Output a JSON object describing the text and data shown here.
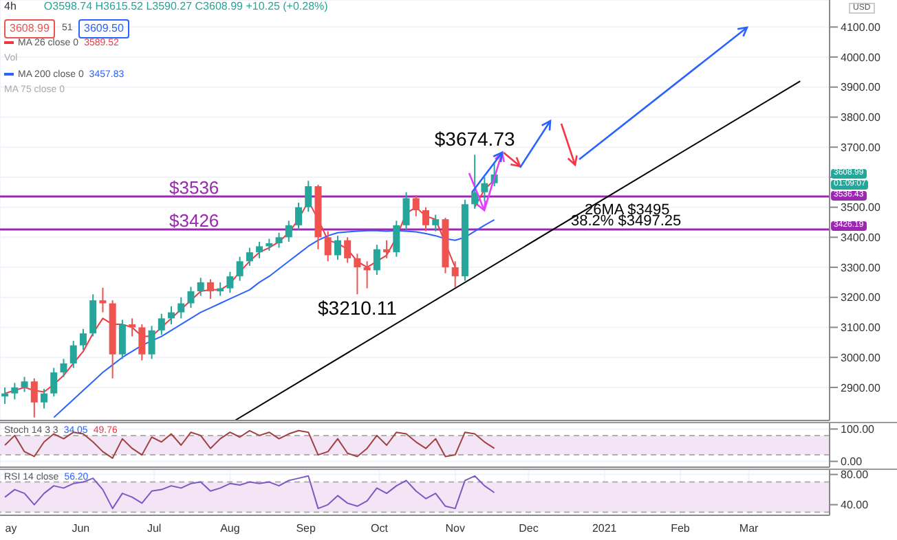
{
  "chart_data": [
    {
      "type": "candlestick",
      "title": "4h",
      "subtitle": "O3598.74 H3615.52 L3590.27 C3608.99 +10.25 (+0.28%)",
      "ylabel": "USD",
      "x": [
        "2020-05-01",
        "2020-05-05",
        "2020-05-09",
        "2020-05-13",
        "2020-05-17",
        "2020-05-21",
        "2020-05-25",
        "2020-05-29",
        "2020-06-02",
        "2020-06-06",
        "2020-06-10",
        "2020-06-14",
        "2020-06-18",
        "2020-06-22",
        "2020-06-26",
        "2020-06-30",
        "2020-07-04",
        "2020-07-08",
        "2020-07-12",
        "2020-07-16",
        "2020-07-20",
        "2020-07-24",
        "2020-07-28",
        "2020-08-01",
        "2020-08-05",
        "2020-08-09",
        "2020-08-13",
        "2020-08-17",
        "2020-08-21",
        "2020-08-25",
        "2020-08-29",
        "2020-09-02",
        "2020-09-06",
        "2020-09-10",
        "2020-09-14",
        "2020-09-18",
        "2020-09-22",
        "2020-09-26",
        "2020-09-30",
        "2020-10-04",
        "2020-10-08",
        "2020-10-12",
        "2020-10-16",
        "2020-10-20",
        "2020-10-24",
        "2020-10-28",
        "2020-11-01",
        "2020-11-05",
        "2020-11-09",
        "2020-11-13",
        "2020-11-17"
      ],
      "ohlc": [
        [
          2870,
          2900,
          2845,
          2880
        ],
        [
          2880,
          2915,
          2860,
          2900
        ],
        [
          2900,
          2935,
          2885,
          2920
        ],
        [
          2920,
          2930,
          2800,
          2850
        ],
        [
          2850,
          2895,
          2830,
          2880
        ],
        [
          2880,
          2965,
          2870,
          2950
        ],
        [
          2950,
          2995,
          2935,
          2980
        ],
        [
          2980,
          3055,
          2965,
          3040
        ],
        [
          3040,
          3095,
          3025,
          3080
        ],
        [
          3080,
          3210,
          3070,
          3190
        ],
        [
          3190,
          3232,
          3150,
          3180
        ],
        [
          3180,
          3190,
          2930,
          3010
        ],
        [
          3010,
          3125,
          2995,
          3110
        ],
        [
          3110,
          3130,
          3070,
          3100
        ],
        [
          3100,
          3110,
          2990,
          3010
        ],
        [
          3010,
          3105,
          2995,
          3090
        ],
        [
          3090,
          3145,
          3075,
          3130
        ],
        [
          3130,
          3170,
          3110,
          3150
        ],
        [
          3150,
          3200,
          3130,
          3180
        ],
        [
          3180,
          3235,
          3165,
          3220
        ],
        [
          3220,
          3265,
          3205,
          3250
        ],
        [
          3250,
          3260,
          3195,
          3220
        ],
        [
          3220,
          3250,
          3205,
          3230
        ],
        [
          3230,
          3285,
          3215,
          3270
        ],
        [
          3270,
          3335,
          3255,
          3320
        ],
        [
          3320,
          3365,
          3305,
          3350
        ],
        [
          3350,
          3385,
          3330,
          3370
        ],
        [
          3370,
          3395,
          3355,
          3380
        ],
        [
          3380,
          3415,
          3365,
          3400
        ],
        [
          3400,
          3455,
          3385,
          3440
        ],
        [
          3440,
          3515,
          3425,
          3500
        ],
        [
          3500,
          3588,
          3485,
          3570
        ],
        [
          3570,
          3575,
          3360,
          3400
        ],
        [
          3400,
          3420,
          3320,
          3340
        ],
        [
          3340,
          3405,
          3325,
          3390
        ],
        [
          3390,
          3400,
          3315,
          3330
        ],
        [
          3330,
          3345,
          3210.11,
          3300
        ],
        [
          3300,
          3320,
          3230,
          3290
        ],
        [
          3290,
          3375,
          3275,
          3360
        ],
        [
          3360,
          3390,
          3330,
          3350
        ],
        [
          3350,
          3455,
          3335,
          3440
        ],
        [
          3440,
          3550,
          3425,
          3530
        ],
        [
          3530,
          3540,
          3470,
          3490
        ],
        [
          3490,
          3500,
          3420,
          3440
        ],
        [
          3440,
          3475,
          3420,
          3460
        ],
        [
          3460,
          3465,
          3280,
          3300
        ],
        [
          3300,
          3320,
          3233,
          3270
        ],
        [
          3270,
          3525,
          3255,
          3510
        ],
        [
          3510,
          3674.73,
          3495,
          3550
        ],
        [
          3550,
          3600,
          3520,
          3580
        ],
        [
          3580,
          3645,
          3570,
          3608.99
        ]
      ],
      "colors": [
        "#26a69a",
        "#26a69a",
        "#26a69a",
        "#ef5350",
        "#26a69a",
        "#26a69a",
        "#26a69a",
        "#26a69a",
        "#26a69a",
        "#26a69a",
        "#ef5350",
        "#ef5350",
        "#26a69a",
        "#ef5350",
        "#ef5350",
        "#26a69a",
        "#26a69a",
        "#26a69a",
        "#26a69a",
        "#26a69a",
        "#26a69a",
        "#ef5350",
        "#26a69a",
        "#26a69a",
        "#26a69a",
        "#26a69a",
        "#26a69a",
        "#26a69a",
        "#26a69a",
        "#26a69a",
        "#26a69a",
        "#26a69a",
        "#ef5350",
        "#ef5350",
        "#26a69a",
        "#ef5350",
        "#ef5350",
        "#ef5350",
        "#26a69a",
        "#ef5350",
        "#26a69a",
        "#26a69a",
        "#ef5350",
        "#ef5350",
        "#26a69a",
        "#ef5350",
        "#ef5350",
        "#26a69a",
        "#26a69a",
        "#26a69a",
        "#26a69a"
      ],
      "series": [
        {
          "type": "line",
          "name": "MA 26 close 0",
          "color": "#f23645",
          "values": [
            2880,
            2890,
            2900,
            2890,
            2885,
            2910,
            2940,
            2980,
            3020,
            3080,
            3130,
            3110,
            3110,
            3100,
            3070,
            3070,
            3100,
            3130,
            3160,
            3190,
            3220,
            3225,
            3225,
            3245,
            3285,
            3320,
            3350,
            3365,
            3385,
            3415,
            3460,
            3520,
            3460,
            3390,
            3380,
            3360,
            3320,
            3300,
            3320,
            3340,
            3400,
            3480,
            3500,
            3470,
            3460,
            3380,
            3300,
            null,
            3500,
            3560,
            3590
          ]
        },
        {
          "type": "line",
          "name": "MA 200 close 0",
          "color": "#2962ff",
          "values": [
            null,
            null,
            null,
            null,
            null,
            2800,
            2830,
            2860,
            2890,
            2920,
            2950,
            2975,
            3000,
            3020,
            3040,
            3055,
            3070,
            3090,
            3110,
            3130,
            3150,
            3165,
            3180,
            3195,
            3210,
            3225,
            3250,
            3270,
            3295,
            3320,
            3345,
            3370,
            3390,
            3405,
            3415,
            3418,
            3420,
            3422,
            3422,
            3420,
            3422,
            3420,
            3418,
            3412,
            3405,
            3395,
            3390,
            3400,
            3420,
            3440,
            3458
          ]
        },
        {
          "type": "line",
          "color": "#000000",
          "x": [
            "2020-08-03",
            "2021-03-22"
          ],
          "values": [
            2790,
            3920
          ]
        }
      ],
      "ref_lines": [
        {
          "axis": "y",
          "value": 3536,
          "label": "$3536",
          "color": "#9c27b0"
        },
        {
          "axis": "y",
          "value": 3426,
          "label": "$3426",
          "color": "#9c27b0"
        }
      ],
      "annotations": [
        {
          "text": "$3674.73",
          "x": "2020-11-09",
          "y": 3674.73
        },
        {
          "text": "$3210.11",
          "x": "2020-09-22",
          "y": 3210.11
        },
        "3608.99",
        "3536.43",
        "3426.19",
        "01:09:07",
        "3608.99",
        "51",
        "3609.50",
        "Vol",
        "MA 75 close 0",
        "26MA $3495",
        "38.2% $3497.25",
        "3589.52",
        "3457.83"
      ],
      "xlim": [
        "2020-04-29",
        "2021-04-03"
      ],
      "xticks": [
        {
          "value": "2020-05-01",
          "label": null
        },
        {
          "value": "2020-06-01",
          "label": null
        },
        {
          "value": "2020-07-01",
          "label": null
        },
        {
          "value": "2020-08-01",
          "label": null
        },
        {
          "value": "2020-09-01",
          "label": null
        },
        {
          "value": "2020-10-01",
          "label": null
        },
        {
          "value": "2020-11-01",
          "label": null
        },
        {
          "value": "2020-12-01",
          "label": null
        },
        {
          "value": "2021-01-01",
          "label": null
        },
        {
          "value": "2021-02-01",
          "label": null
        },
        {
          "value": "2021-03-01",
          "label": null
        }
      ],
      "ylim": [
        2790,
        4190
      ],
      "yticks": [
        {
          "value": 2900,
          "label": "2900.00"
        },
        {
          "value": 3000,
          "label": "3000.00"
        },
        {
          "value": 3100,
          "label": "3100.00"
        },
        {
          "value": 3200,
          "label": "3200.00"
        },
        {
          "value": 3300,
          "label": "3300.00"
        },
        {
          "value": 3400,
          "label": "3400.00"
        },
        {
          "value": 3500,
          "label": "3500.00"
        },
        {
          "value": 3600,
          "label": null
        },
        {
          "value": 3700,
          "label": "3700.00"
        },
        {
          "value": 3800,
          "label": "3800.00"
        },
        {
          "value": 3900,
          "label": "3900.00"
        },
        {
          "value": 4000,
          "label": "4000.00"
        },
        {
          "value": 4100,
          "label": "4100.00"
        }
      ],
      "grid": true,
      "legend": "top left",
      "tick_labels": "y"
    },
    {
      "type": "line",
      "title": "Stoch 14 3 3",
      "annotations": [
        "34.05",
        "49.76"
      ],
      "x": [
        "2020-05-01",
        "2020-05-05",
        "2020-05-09",
        "2020-05-13",
        "2020-05-17",
        "2020-05-21",
        "2020-05-25",
        "2020-05-29",
        "2020-06-02",
        "2020-06-06",
        "2020-06-10",
        "2020-06-14",
        "2020-06-18",
        "2020-06-22",
        "2020-06-26",
        "2020-06-30",
        "2020-07-04",
        "2020-07-08",
        "2020-07-12",
        "2020-07-16",
        "2020-07-20",
        "2020-07-24",
        "2020-07-28",
        "2020-08-01",
        "2020-08-05",
        "2020-08-09",
        "2020-08-13",
        "2020-08-17",
        "2020-08-21",
        "2020-08-25",
        "2020-08-29",
        "2020-09-02",
        "2020-09-06",
        "2020-09-10",
        "2020-09-14",
        "2020-09-18",
        "2020-09-22",
        "2020-09-26",
        "2020-09-30",
        "2020-10-04",
        "2020-10-08",
        "2020-10-12",
        "2020-10-16",
        "2020-10-20",
        "2020-10-24",
        "2020-10-28",
        "2020-11-01",
        "2020-11-05",
        "2020-11-09",
        "2020-11-13",
        "2020-11-17"
      ],
      "series": [
        {
          "color": "#a04040",
          "values": [
            50,
            80,
            30,
            15,
            60,
            85,
            70,
            90,
            85,
            60,
            30,
            10,
            70,
            40,
            20,
            75,
            60,
            85,
            50,
            90,
            80,
            40,
            70,
            90,
            75,
            95,
            80,
            90,
            70,
            85,
            95,
            90,
            20,
            30,
            70,
            25,
            15,
            40,
            80,
            50,
            90,
            85,
            60,
            40,
            70,
            15,
            20,
            90,
            85,
            60,
            40
          ]
        }
      ],
      "bands": [
        {
          "axis": "y",
          "from": 20,
          "to": 80,
          "color": "#f3e5f5"
        }
      ],
      "ref_lines": [
        {
          "axis": "y",
          "value": 80,
          "color": "#b0b0b0",
          "line_style": "dashed"
        },
        {
          "axis": "y",
          "value": 20,
          "color": "#b0b0b0",
          "line_style": "dashed"
        }
      ],
      "xlim": [
        "2020-04-29",
        "2021-04-03"
      ],
      "xticks": [
        {
          "value": "2020-05-01",
          "label": null
        },
        {
          "value": "2020-06-01",
          "label": null
        },
        {
          "value": "2020-07-01",
          "label": null
        },
        {
          "value": "2020-08-01",
          "label": null
        },
        {
          "value": "2020-09-01",
          "label": null
        },
        {
          "value": "2020-10-01",
          "label": null
        },
        {
          "value": "2020-11-01",
          "label": null
        },
        {
          "value": "2020-12-01",
          "label": null
        },
        {
          "value": "2021-01-01",
          "label": null
        },
        {
          "value": "2021-02-01",
          "label": null
        },
        {
          "value": "2021-03-01",
          "label": null
        }
      ],
      "ylim": [
        -18,
        118
      ],
      "yticks": [
        {
          "value": 0,
          "label": "0.00"
        },
        {
          "value": 100,
          "label": "100.00"
        }
      ],
      "grid": true,
      "tick_labels": "y"
    },
    {
      "type": "line",
      "title": "RSI 14 close",
      "annotations": [
        "56.20"
      ],
      "x": [
        "2020-05-01",
        "2020-05-05",
        "2020-05-09",
        "2020-05-13",
        "2020-05-17",
        "2020-05-21",
        "2020-05-25",
        "2020-05-29",
        "2020-06-02",
        "2020-06-06",
        "2020-06-10",
        "2020-06-14",
        "2020-06-18",
        "2020-06-22",
        "2020-06-26",
        "2020-06-30",
        "2020-07-04",
        "2020-07-08",
        "2020-07-12",
        "2020-07-16",
        "2020-07-20",
        "2020-07-24",
        "2020-07-28",
        "2020-08-01",
        "2020-08-05",
        "2020-08-09",
        "2020-08-13",
        "2020-08-17",
        "2020-08-21",
        "2020-08-25",
        "2020-08-29",
        "2020-09-02",
        "2020-09-06",
        "2020-09-10",
        "2020-09-14",
        "2020-09-18",
        "2020-09-22",
        "2020-09-26",
        "2020-09-30",
        "2020-10-04",
        "2020-10-08",
        "2020-10-12",
        "2020-10-16",
        "2020-10-20",
        "2020-10-24",
        "2020-10-28",
        "2020-11-01",
        "2020-11-05",
        "2020-11-09",
        "2020-11-13",
        "2020-11-17"
      ],
      "series": [
        {
          "color": "#7e57c2",
          "values": [
            50,
            60,
            55,
            40,
            55,
            65,
            62,
            68,
            70,
            75,
            60,
            35,
            55,
            50,
            42,
            58,
            60,
            65,
            62,
            68,
            70,
            58,
            62,
            68,
            66,
            70,
            68,
            70,
            65,
            72,
            75,
            78,
            35,
            40,
            52,
            42,
            38,
            45,
            62,
            55,
            65,
            72,
            58,
            48,
            55,
            38,
            35,
            72,
            78,
            65,
            56
          ]
        }
      ],
      "bands": [
        {
          "axis": "y",
          "from": 30,
          "to": 70,
          "color": "#f3e5f5"
        }
      ],
      "ref_lines": [
        {
          "axis": "y",
          "value": 70,
          "color": "#b0b0b0",
          "line_style": "dashed"
        },
        {
          "axis": "y",
          "value": 30,
          "color": "#b0b0b0",
          "line_style": "dashed"
        }
      ],
      "xlim": [
        "2020-04-29",
        "2021-04-03"
      ],
      "xticks": [
        {
          "value": "2020-05-01",
          "label": "ay"
        },
        {
          "value": "2020-06-01",
          "label": "Jun"
        },
        {
          "value": "2020-07-01",
          "label": "Jul"
        },
        {
          "value": "2020-08-01",
          "label": "Aug"
        },
        {
          "value": "2020-09-01",
          "label": "Sep"
        },
        {
          "value": "2020-10-01",
          "label": "Oct"
        },
        {
          "value": "2020-11-01",
          "label": "Nov"
        },
        {
          "value": "2020-12-01",
          "label": "Dec"
        },
        {
          "value": "2021-01-01",
          "label": "2021"
        },
        {
          "value": "2021-02-01",
          "label": "Feb"
        },
        {
          "value": "2021-03-01",
          "label": "Mar"
        }
      ],
      "ylim": [
        26,
        86
      ],
      "yticks": [
        {
          "value": 40,
          "label": "40.00"
        },
        {
          "value": 80,
          "label": "80.00"
        }
      ],
      "grid": true
    }
  ]
}
